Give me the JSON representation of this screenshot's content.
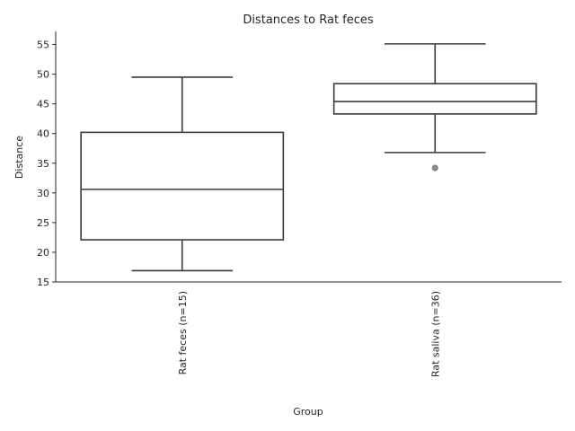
{
  "chart_data": {
    "type": "box",
    "title": "Distances to Rat feces",
    "xlabel": "Group",
    "ylabel": "Distance",
    "ylim": [
      15,
      57.2
    ],
    "yticks": [
      15,
      20,
      25,
      30,
      35,
      40,
      45,
      50,
      55
    ],
    "categories": [
      "Rat feces (n=15)",
      "Rat saliva (n=36)"
    ],
    "boxes": [
      {
        "whisker_low": 16.9,
        "q1": 22.1,
        "median": 30.6,
        "q3": 40.2,
        "whisker_high": 49.5,
        "outliers": []
      },
      {
        "whisker_low": 36.8,
        "q1": 43.3,
        "median": 45.4,
        "q3": 48.4,
        "whisker_high": 55.1,
        "outliers": [
          34.2
        ]
      }
    ],
    "grid": false,
    "colors": {
      "box_edge": "#3b3b3b",
      "flier": "#8c8c8c",
      "text": "#262626"
    }
  }
}
